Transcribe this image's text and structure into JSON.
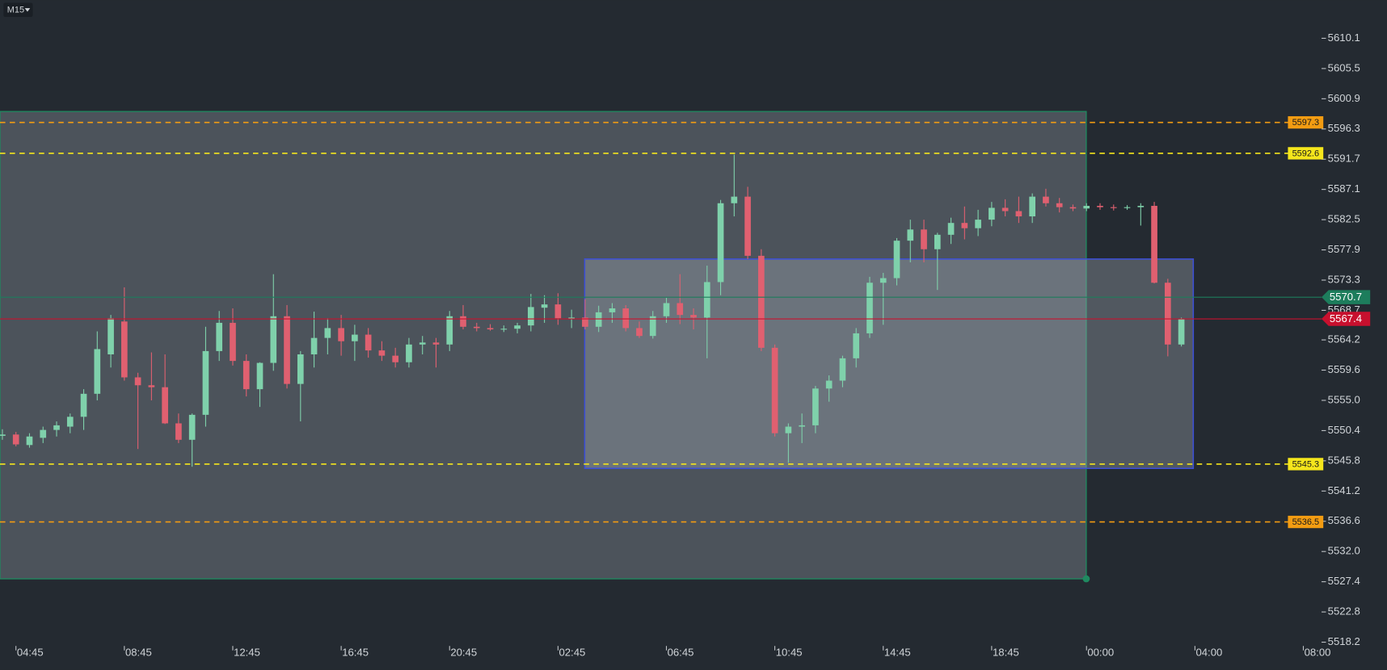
{
  "toolbar": {
    "timeframe": "M15"
  },
  "chart_data": {
    "type": "candlestick",
    "categories": [
      null,
      "04:45",
      null,
      null,
      null,
      null,
      null,
      null,
      null,
      "08:45",
      null,
      null,
      null,
      null,
      null,
      null,
      null,
      "12:45",
      null,
      null,
      null,
      null,
      null,
      null,
      null,
      "16:45",
      null,
      null,
      null,
      null,
      null,
      null,
      null,
      "20:45",
      null,
      null,
      null,
      null,
      null,
      null,
      null,
      "02:45",
      null,
      null,
      null,
      null,
      null,
      null,
      null,
      "06:45",
      null,
      null,
      null,
      null,
      null,
      null,
      null,
      "10:45",
      null,
      null,
      null,
      null,
      null,
      null,
      null,
      "14:45",
      null,
      null,
      null,
      null,
      null,
      null,
      null,
      "18:45",
      null,
      null,
      null,
      null,
      null,
      null,
      "00:00",
      null,
      null,
      null,
      null,
      null,
      null,
      null,
      "04:00",
      null,
      null,
      null,
      null,
      null,
      null,
      null,
      "08:00"
    ],
    "open": [
      5549.6,
      5549.8,
      5548.2,
      5549.3,
      5550.5,
      5551.0,
      5552.5,
      5556.0,
      5562.0,
      5567.0,
      5558.5,
      5557.3,
      5557.0,
      5551.5,
      5549.0,
      5552.8,
      5562.5,
      5566.8,
      5561.0,
      5556.7,
      5560.7,
      5567.8,
      5557.5,
      5562.0,
      5564.5,
      5566.0,
      5564.0,
      5565.0,
      5562.6,
      5561.8,
      5560.8,
      5563.5,
      5563.8,
      5563.5,
      5567.8,
      5566.2,
      5566.0,
      5565.8,
      5565.9,
      5566.4,
      5569.1,
      5569.6,
      5567.5,
      5567.6,
      5566.2,
      5568.4,
      5569.0,
      5566.0,
      5564.8,
      5567.8,
      5569.8,
      5568.0,
      5567.6,
      5573.0,
      5585.0,
      5586.0,
      5577.0,
      5563.0,
      5550.0,
      5551.0,
      5551.2,
      5556.8,
      5558.0,
      5561.4,
      5565.2,
      5572.9,
      5573.6,
      5579.3,
      5581.0,
      5578.0,
      5580.2,
      5582.0,
      5581.2,
      5582.5,
      5584.3,
      5583.8,
      5583.0,
      5586.0,
      5585.0,
      5584.4,
      5584.2,
      5584.6,
      5584.4,
      5584.3,
      5584.4,
      5584.6,
      5572.9,
      5563.5,
      null,
      null,
      null,
      null,
      null,
      null,
      null,
      null,
      null
    ],
    "high": [
      5550.6,
      5550.2,
      5550.0,
      5551.0,
      5551.8,
      5553.0,
      5556.7,
      5565.5,
      5568.0,
      5572.2,
      5559.2,
      5562.3,
      5562.0,
      5553.0,
      5553.0,
      5566.2,
      5568.6,
      5569.0,
      5562.0,
      5560.8,
      5574.2,
      5569.5,
      5562.5,
      5568.5,
      5567.5,
      5568.0,
      5566.5,
      5566.0,
      5564.0,
      5563.0,
      5564.5,
      5564.8,
      5564.5,
      5568.6,
      5569.5,
      5566.8,
      5566.6,
      5566.4,
      5566.8,
      5571.2,
      5571.0,
      5571.3,
      5568.8,
      5570.4,
      5569.4,
      5569.8,
      5569.5,
      5567.0,
      5568.6,
      5570.6,
      5574.2,
      5569.0,
      5575.5,
      5585.5,
      5592.4,
      5587.5,
      5578.0,
      5563.5,
      5551.5,
      5553.0,
      5557.2,
      5558.8,
      5561.8,
      5566.0,
      5573.8,
      5574.4,
      5579.7,
      5582.5,
      5582.5,
      5580.5,
      5582.8,
      5584.5,
      5584.0,
      5585.2,
      5585.6,
      5586.0,
      5586.5,
      5587.2,
      5585.8,
      5584.8,
      5585.0,
      5585.0,
      5584.8,
      5584.7,
      5585.0,
      5585.2,
      5573.5,
      5567.6,
      null,
      null,
      null,
      null,
      null,
      null,
      null,
      null,
      null
    ],
    "low": [
      5549.0,
      5548.0,
      5547.8,
      5548.5,
      5549.5,
      5550.0,
      5550.5,
      5555.0,
      5560.0,
      5558.0,
      5547.6,
      5555.0,
      5551.4,
      5548.5,
      5544.9,
      5551.0,
      5561.0,
      5560.3,
      5555.6,
      5554.0,
      5559.5,
      5556.8,
      5551.8,
      5560.0,
      5562.0,
      5561.8,
      5561.0,
      5561.5,
      5561.0,
      5560.0,
      5560.0,
      5562.0,
      5560.0,
      5562.5,
      5565.8,
      5565.5,
      5565.6,
      5565.4,
      5565.2,
      5565.5,
      5566.8,
      5566.5,
      5566.0,
      5565.8,
      5565.4,
      5566.8,
      5565.5,
      5564.5,
      5564.4,
      5566.8,
      5566.6,
      5565.8,
      5561.4,
      5571.0,
      5583.0,
      5576.5,
      5562.5,
      5549.5,
      5545.5,
      5548.5,
      5550.0,
      5554.8,
      5557.0,
      5560.0,
      5564.5,
      5566.5,
      5572.5,
      5576.0,
      5576.0,
      5571.8,
      5578.8,
      5579.5,
      5580.0,
      5581.5,
      5583.0,
      5582.0,
      5582.0,
      5584.5,
      5583.6,
      5583.8,
      5583.8,
      5584.0,
      5583.9,
      5584.0,
      5581.6,
      5572.8,
      5561.7,
      5563.2,
      null,
      null,
      null,
      null,
      null,
      null,
      null,
      null,
      null
    ],
    "close": [
      5549.8,
      5548.3,
      5549.5,
      5550.5,
      5551.2,
      5552.5,
      5556.0,
      5562.8,
      5567.5,
      5558.5,
      5557.3,
      5557.0,
      5551.5,
      5549.0,
      5552.8,
      5562.5,
      5566.8,
      5561.0,
      5556.7,
      5560.7,
      5567.8,
      5557.5,
      5562.0,
      5564.5,
      5566.0,
      5564.0,
      5565.0,
      5562.6,
      5561.8,
      5560.8,
      5563.5,
      5563.8,
      5563.5,
      5567.8,
      5566.2,
      5566.0,
      5565.8,
      5565.9,
      5566.4,
      5569.2,
      5569.6,
      5567.5,
      5567.6,
      5566.2,
      5568.4,
      5569.0,
      5566.0,
      5564.8,
      5567.8,
      5569.8,
      5568.0,
      5567.6,
      5573.0,
      5585.0,
      5586.0,
      5577.0,
      5563.0,
      5550.0,
      5551.0,
      5551.2,
      5556.8,
      5558.0,
      5561.4,
      5565.2,
      5572.9,
      5573.6,
      5579.3,
      5581.0,
      5578.0,
      5580.2,
      5582.0,
      5581.2,
      5582.5,
      5584.3,
      5583.8,
      5583.0,
      5586.0,
      5585.0,
      5584.4,
      5584.2,
      5584.6,
      5584.4,
      5584.3,
      5584.4,
      5584.6,
      5572.9,
      5563.5,
      5567.4,
      null,
      null,
      null,
      null,
      null,
      null,
      null,
      null,
      null
    ],
    "up_color": "#7fd1ab",
    "down_color": "#e06070",
    "ylim": [
      5514.8,
      5615.9
    ],
    "yticks": [
      5518.2,
      5522.8,
      5527.4,
      {
        "value": 5532,
        "label": "5532.0"
      },
      5536.6,
      5541.2,
      5545.8,
      5550.4,
      {
        "value": 5555,
        "label": "5555.0"
      },
      5559.6,
      5564.2,
      5568.7,
      5573.3,
      5577.9,
      5582.5,
      5587.1,
      5591.7,
      5596.3,
      5600.9,
      5605.5,
      5610.1
    ],
    "levels": [
      {
        "value": 5597.3,
        "color": "#f39c12"
      },
      {
        "value": 5592.6,
        "color": "#f5e61c"
      },
      {
        "value": 5545.3,
        "color": "#f5e61c"
      },
      {
        "value": 5536.5,
        "color": "#f39c12"
      }
    ],
    "price_markers": [
      {
        "value": 5570.7,
        "color": "#1d7d5c"
      },
      {
        "value": 5567.4,
        "color": "#c8102e"
      }
    ]
  }
}
